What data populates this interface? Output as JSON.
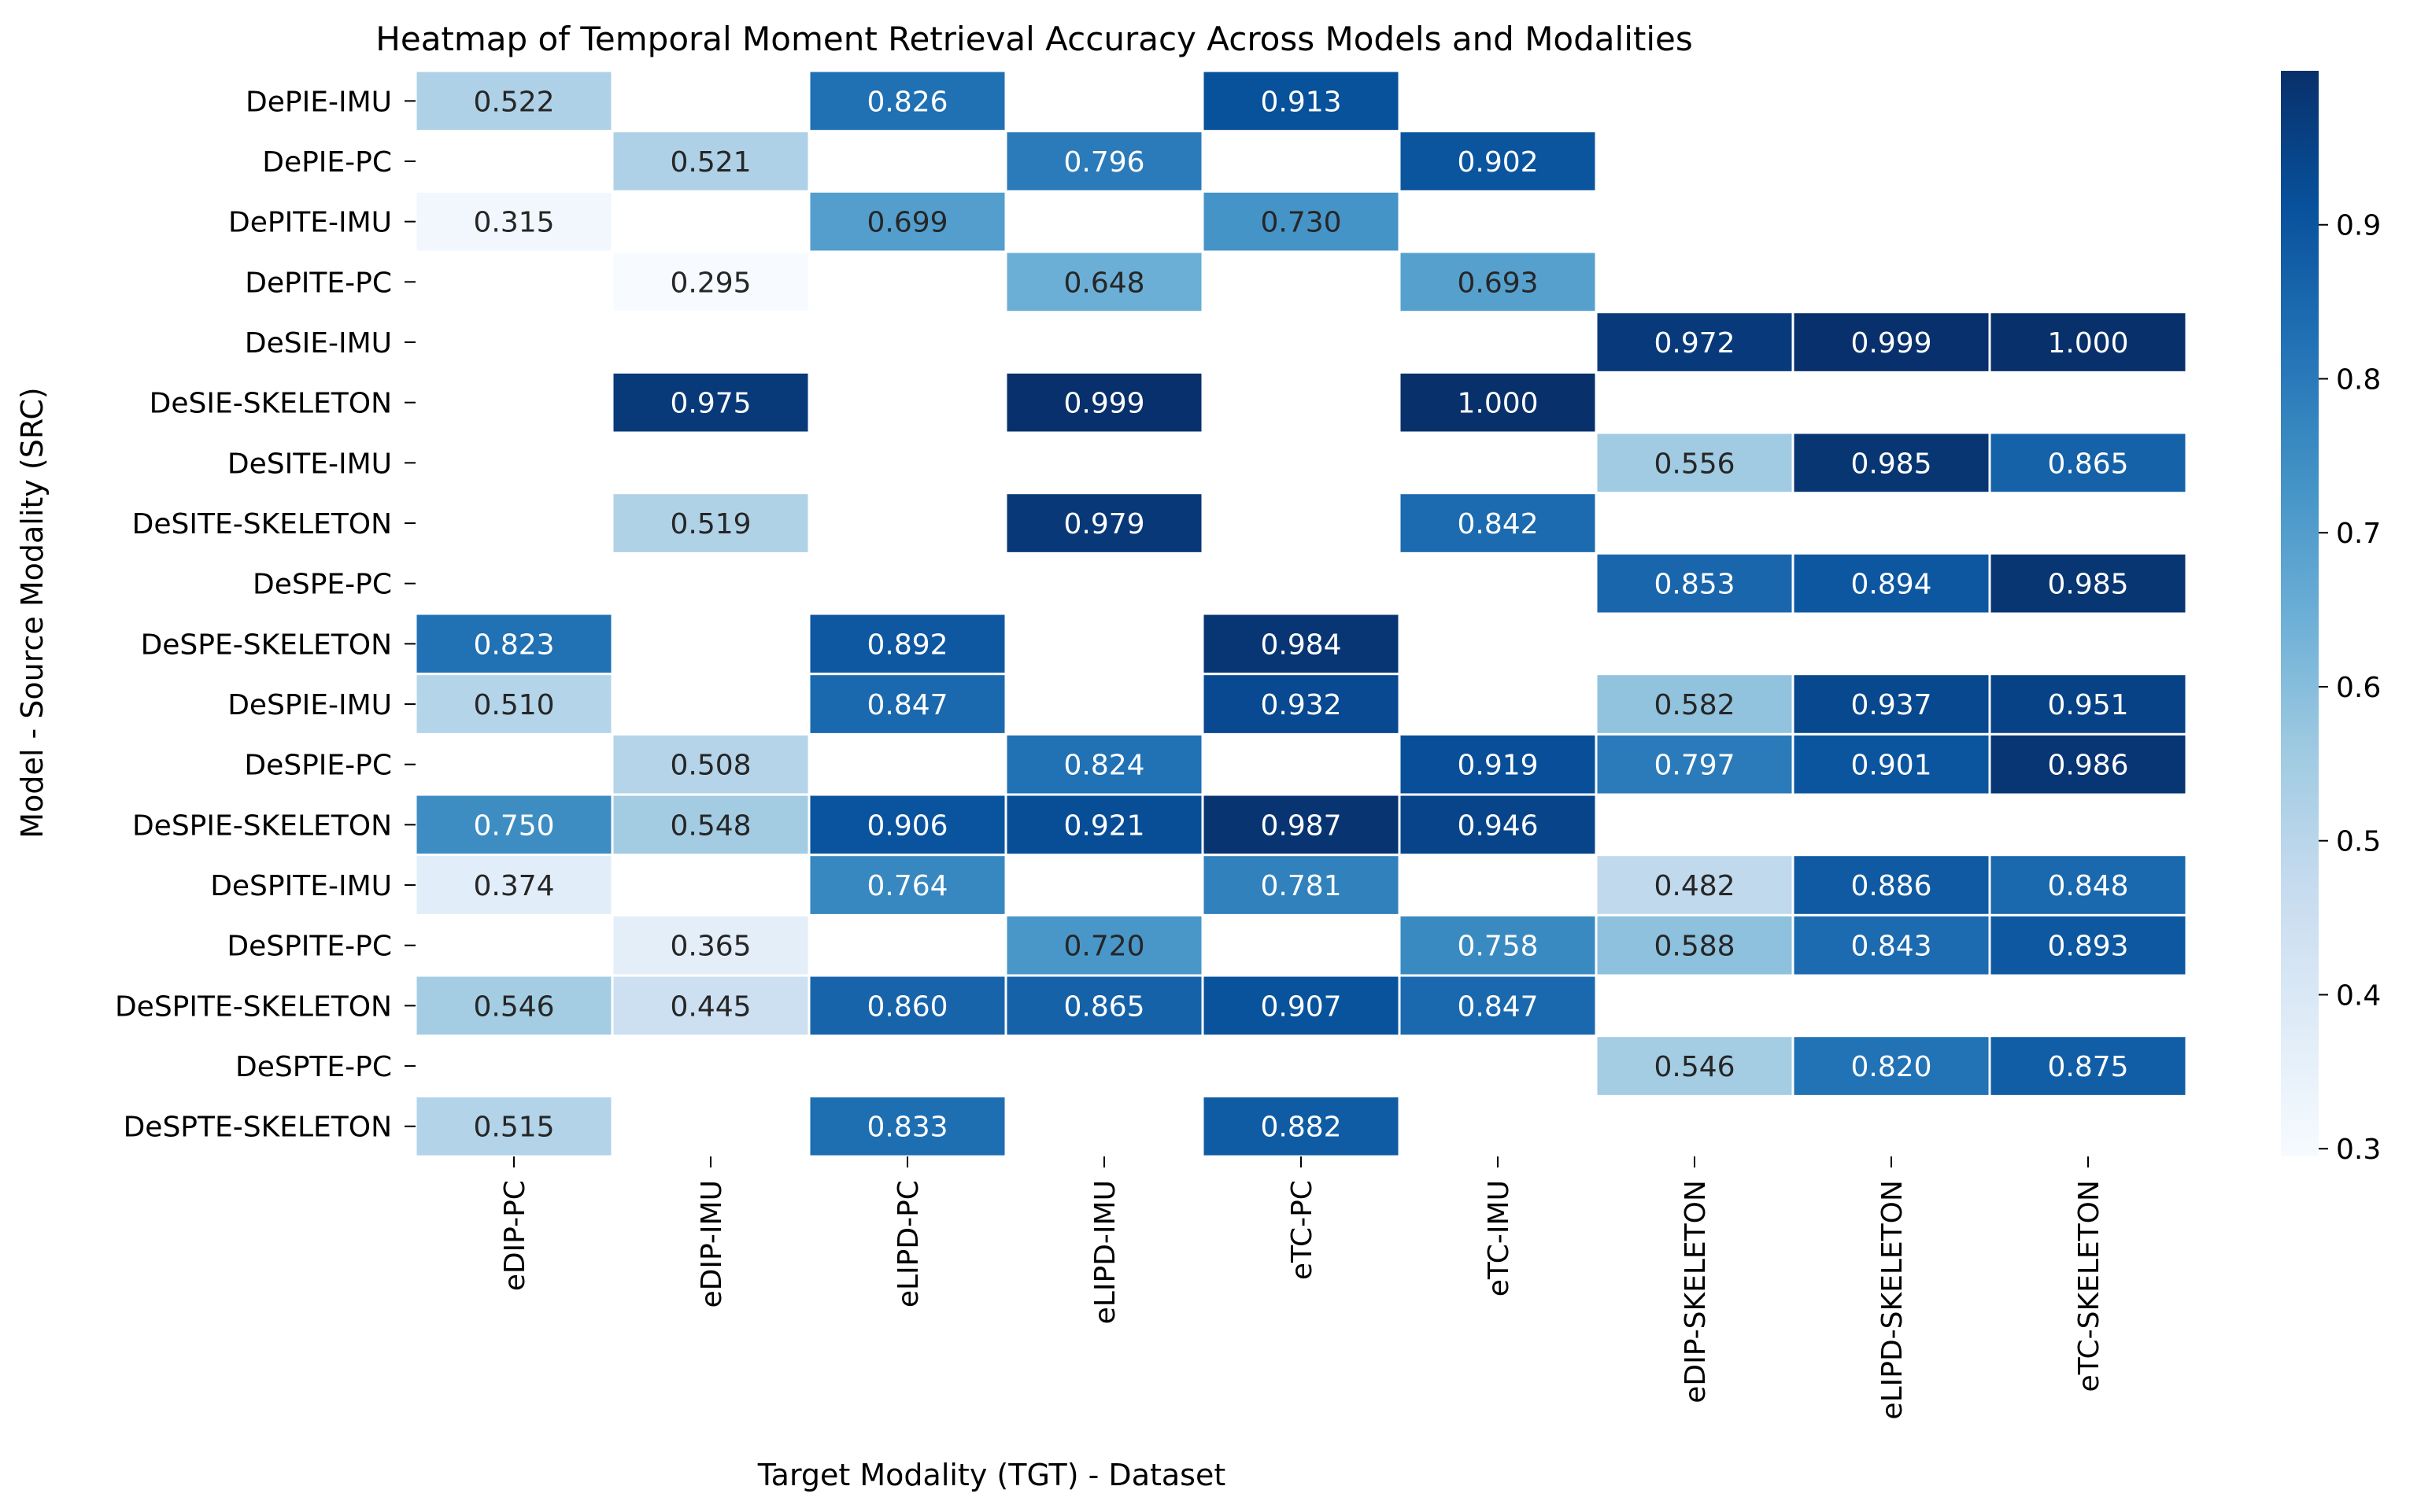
{
  "chart_data": {
    "type": "heatmap",
    "title": "Heatmap of Temporal Moment Retrieval Accuracy Across Models and Modalities",
    "xlabel": "Target Modality (TGT) - Dataset",
    "ylabel": "Model - Source Modality (SRC)",
    "x_categories": [
      "eDIP-PC",
      "eDIP-IMU",
      "eLIPD-PC",
      "eLIPD-IMU",
      "eTC-PC",
      "eTC-IMU",
      "eDIP-SKELETON",
      "eLIPD-SKELETON",
      "eTC-SKELETON"
    ],
    "y_categories": [
      "DePIE-IMU",
      "DePIE-PC",
      "DePITE-IMU",
      "DePITE-PC",
      "DeSIE-IMU",
      "DeSIE-SKELETON",
      "DeSITE-IMU",
      "DeSITE-SKELETON",
      "DeSPE-PC",
      "DeSPE-SKELETON",
      "DeSPIE-IMU",
      "DeSPIE-PC",
      "DeSPIE-SKELETON",
      "DeSPITE-IMU",
      "DeSPITE-PC",
      "DeSPITE-SKELETON",
      "DeSPTE-PC",
      "DeSPTE-SKELETON"
    ],
    "values": [
      [
        0.522,
        null,
        0.826,
        null,
        0.913,
        null,
        null,
        null,
        null
      ],
      [
        null,
        0.521,
        null,
        0.796,
        null,
        0.902,
        null,
        null,
        null
      ],
      [
        0.315,
        null,
        0.699,
        null,
        0.73,
        null,
        null,
        null,
        null
      ],
      [
        null,
        0.295,
        null,
        0.648,
        null,
        0.693,
        null,
        null,
        null
      ],
      [
        null,
        null,
        null,
        null,
        null,
        null,
        0.972,
        0.999,
        1.0
      ],
      [
        null,
        0.975,
        null,
        0.999,
        null,
        1.0,
        null,
        null,
        null
      ],
      [
        null,
        null,
        null,
        null,
        null,
        null,
        0.556,
        0.985,
        0.865
      ],
      [
        null,
        0.519,
        null,
        0.979,
        null,
        0.842,
        null,
        null,
        null
      ],
      [
        null,
        null,
        null,
        null,
        null,
        null,
        0.853,
        0.894,
        0.985
      ],
      [
        0.823,
        null,
        0.892,
        null,
        0.984,
        null,
        null,
        null,
        null
      ],
      [
        0.51,
        null,
        0.847,
        null,
        0.932,
        null,
        0.582,
        0.937,
        0.951
      ],
      [
        null,
        0.508,
        null,
        0.824,
        null,
        0.919,
        0.797,
        0.901,
        0.986
      ],
      [
        0.75,
        0.548,
        0.906,
        0.921,
        0.987,
        0.946,
        null,
        null,
        null
      ],
      [
        0.374,
        null,
        0.764,
        null,
        0.781,
        null,
        0.482,
        0.886,
        0.848
      ],
      [
        null,
        0.365,
        null,
        0.72,
        null,
        0.758,
        0.588,
        0.843,
        0.893
      ],
      [
        0.546,
        0.445,
        0.86,
        0.865,
        0.907,
        0.847,
        null,
        null,
        null
      ],
      [
        null,
        null,
        null,
        null,
        null,
        null,
        0.546,
        0.82,
        0.875
      ],
      [
        0.515,
        null,
        0.833,
        null,
        0.882,
        null,
        null,
        null,
        null
      ]
    ],
    "value_format": "0.000",
    "colormap": "Blues",
    "colorbar": {
      "vmin": 0.295,
      "vmax": 1.0,
      "ticks": [
        0.3,
        0.4,
        0.5,
        0.6,
        0.7,
        0.8,
        0.9
      ],
      "ticks_text": [
        "0.3",
        "0.4",
        "0.5",
        "0.6",
        "0.7",
        "0.8",
        "0.9"
      ]
    },
    "grid": false,
    "cell_border_color": "#ffffff"
  }
}
